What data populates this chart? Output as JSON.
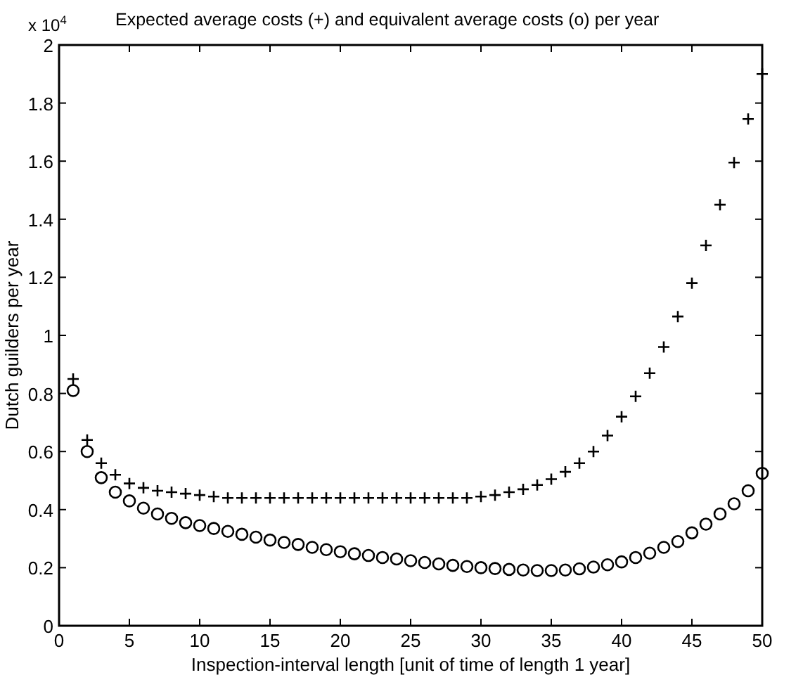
{
  "chart_data": {
    "type": "scatter",
    "title": "Expected average costs (+) and equivalent average costs (o) per year",
    "xlabel": "Inspection-interval length [unit of time of length 1 year]",
    "ylabel": "Dutch guilders per year",
    "annotations": [
      "x 10$^{4}$"
    ],
    "x": [
      1,
      2,
      3,
      4,
      5,
      6,
      7,
      8,
      9,
      10,
      11,
      12,
      13,
      14,
      15,
      16,
      17,
      18,
      19,
      20,
      21,
      22,
      23,
      24,
      25,
      26,
      27,
      28,
      29,
      30,
      31,
      32,
      33,
      34,
      35,
      36,
      37,
      38,
      39,
      40,
      41,
      42,
      43,
      44,
      45,
      46,
      47,
      48,
      49,
      50
    ],
    "series": [
      {
        "color": "#000000",
        "marker": "cross",
        "values": [
          0.85,
          0.64,
          0.56,
          0.52,
          0.49,
          0.475,
          0.465,
          0.46,
          0.455,
          0.45,
          0.445,
          0.44,
          0.44,
          0.44,
          0.44,
          0.44,
          0.44,
          0.44,
          0.44,
          0.44,
          0.44,
          0.44,
          0.44,
          0.44,
          0.44,
          0.44,
          0.44,
          0.44,
          0.44,
          0.445,
          0.45,
          0.46,
          0.47,
          0.485,
          0.505,
          0.53,
          0.56,
          0.6,
          0.655,
          0.72,
          0.79,
          0.87,
          0.96,
          1.065,
          1.18,
          1.31,
          1.45,
          1.595,
          1.745,
          1.9
        ]
      },
      {
        "color": "#000000",
        "marker": "circle",
        "values": [
          0.81,
          0.6,
          0.51,
          0.46,
          0.43,
          0.405,
          0.385,
          0.37,
          0.355,
          0.345,
          0.335,
          0.325,
          0.315,
          0.305,
          0.295,
          0.287,
          0.28,
          0.27,
          0.262,
          0.255,
          0.248,
          0.242,
          0.235,
          0.23,
          0.224,
          0.218,
          0.213,
          0.208,
          0.204,
          0.2,
          0.197,
          0.194,
          0.192,
          0.19,
          0.19,
          0.192,
          0.196,
          0.202,
          0.21,
          0.22,
          0.235,
          0.25,
          0.27,
          0.29,
          0.32,
          0.35,
          0.385,
          0.42,
          0.465,
          0.525
        ]
      }
    ],
    "xlim": [
      0,
      50
    ],
    "xticks": [
      0,
      5,
      10,
      15,
      20,
      25,
      30,
      35,
      40,
      45,
      50
    ],
    "ylim": [
      0,
      2
    ],
    "yticks": [
      0,
      0.2,
      0.4,
      0.6,
      0.8,
      1,
      1.2,
      1.4,
      1.6,
      1.8,
      2
    ],
    "grid": false
  }
}
